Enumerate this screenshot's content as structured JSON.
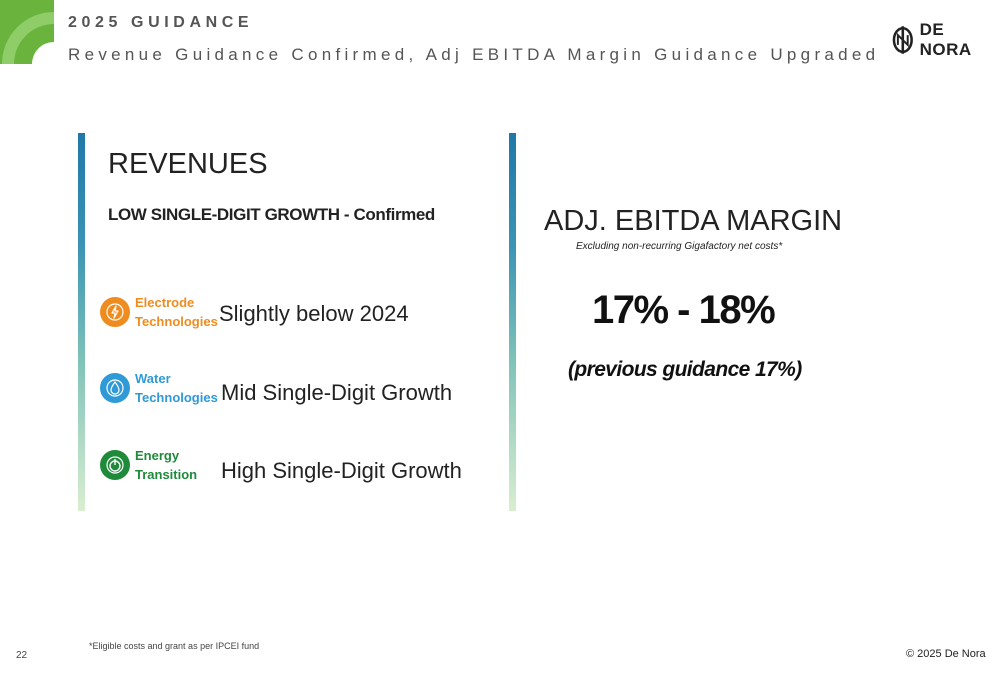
{
  "header": {
    "kicker": "2025 GUIDANCE",
    "title": "Revenue Guidance Confirmed, Adj EBITDA Margin Guidance Upgraded"
  },
  "brand": {
    "name": "DE NORA",
    "logo_icon": "de-nora-logo-icon"
  },
  "revenues": {
    "title": "REVENUES",
    "subtitle": "LOW SINGLE-DIGIT GROWTH - Confirmed",
    "segments": [
      {
        "name_line1": "Electrode",
        "name_line2": "Technologies",
        "value": "Slightly below 2024",
        "color": "#ef8c1f",
        "icon": "lightning-icon"
      },
      {
        "name_line1": "Water",
        "name_line2": "Technologies",
        "value": "Mid Single-Digit Growth",
        "color": "#2f9ad6",
        "icon": "water-drop-icon"
      },
      {
        "name_line1": "Energy",
        "name_line2": "Transition",
        "value": "High Single-Digit Growth",
        "color": "#1e8a3a",
        "icon": "power-icon"
      }
    ]
  },
  "ebitda": {
    "title": "ADJ. EBITDA MARGIN",
    "note": "Excluding non-recurring Gigafactory net costs*",
    "range": "17% - 18%",
    "previous": "(previous guidance 17%)"
  },
  "footer": {
    "footnote": "*Eligible costs and grant as per IPCEI fund",
    "page_number": "22",
    "copyright": "© 2025 De Nora"
  },
  "colors": {
    "accent_green": "#6ab43e",
    "bar_top": "#1f78a8",
    "bar_bottom": "#d9eed0"
  }
}
